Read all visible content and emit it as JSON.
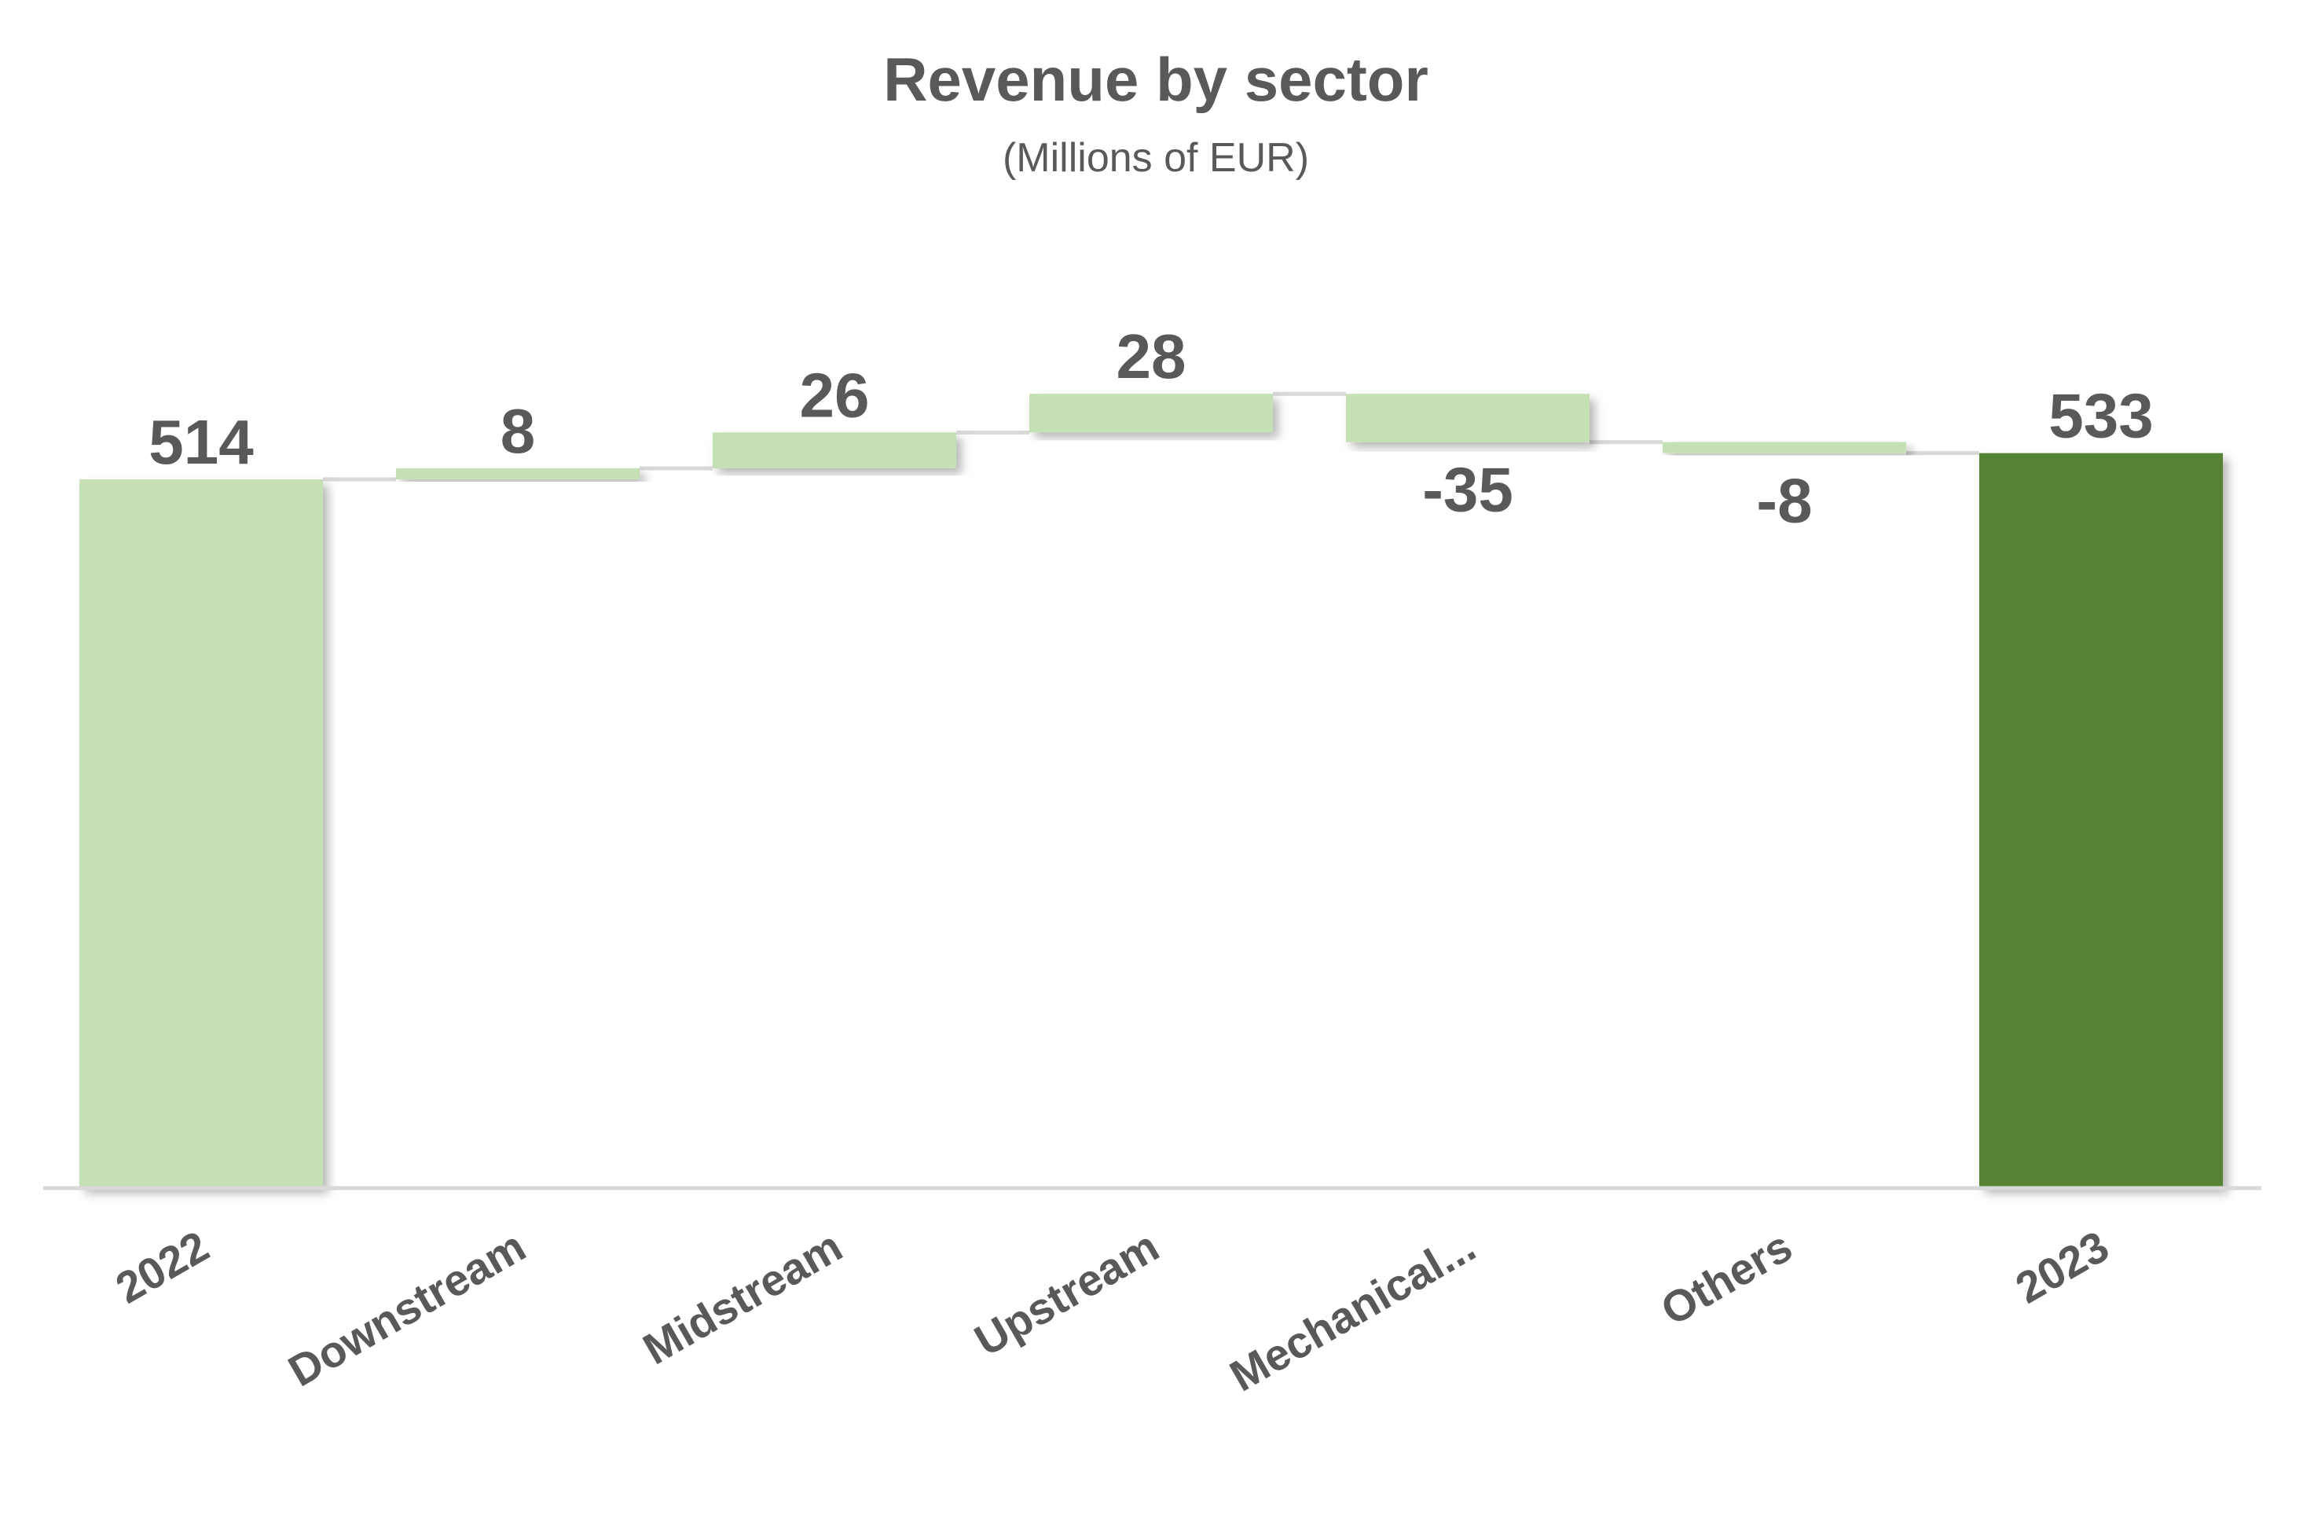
{
  "chart_data": {
    "type": "waterfall",
    "title": "Revenue by sector",
    "subtitle": "(Millions of EUR)",
    "xlabel": "",
    "ylabel": "",
    "categories": [
      "2022",
      "Downstream",
      "Midstream",
      "Upstream",
      "Mechanical...",
      "Others",
      "2023"
    ],
    "values": [
      514,
      8,
      26,
      28,
      -35,
      -8,
      533
    ],
    "labels": [
      "514",
      "8",
      "26",
      "28",
      "-35",
      "-8",
      "533"
    ],
    "kinds": [
      "total",
      "delta",
      "delta",
      "delta",
      "delta",
      "delta",
      "total"
    ],
    "ylim": [
      0,
      600
    ],
    "grid": false,
    "legend": "none",
    "colors": {
      "start_total": "#c5e0b4",
      "delta": "#c5e0b4",
      "end_total": "#548235",
      "text": "#595959",
      "axis": "#d9d9d9",
      "connector": "#d9d9d9"
    }
  }
}
